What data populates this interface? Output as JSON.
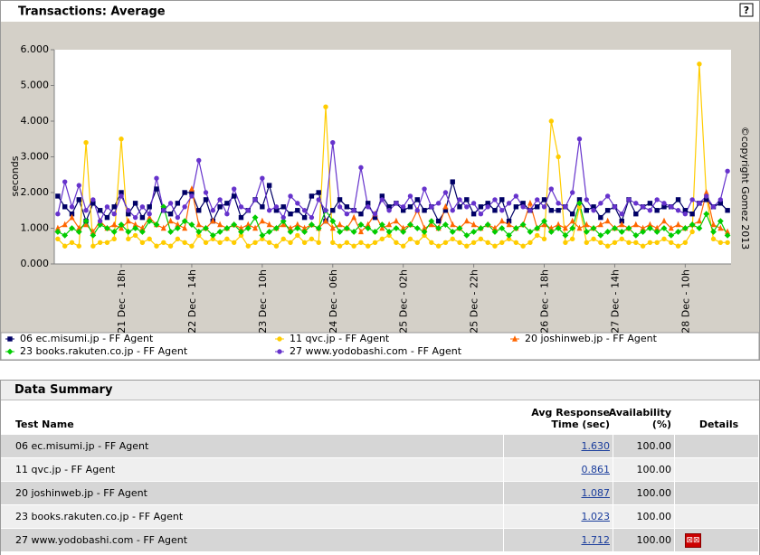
{
  "header": {
    "title": "Transactions: Average",
    "help": "?"
  },
  "chart_data": {
    "type": "line",
    "y_label": "seconds",
    "annotation": "©copyright Gomez 2013",
    "ylim": [
      0,
      6
    ],
    "yticks": [
      {
        "value": 0,
        "label": "0.000"
      },
      {
        "value": 1,
        "label": "1.000"
      },
      {
        "value": 2,
        "label": "2.000"
      },
      {
        "value": 3,
        "label": "3.000"
      },
      {
        "value": 4,
        "label": "4.000"
      },
      {
        "value": 5,
        "label": "5.000"
      },
      {
        "value": 6,
        "label": "6.000"
      }
    ],
    "grid": false,
    "categories": [
      null,
      null,
      null,
      null,
      null,
      null,
      null,
      null,
      null,
      "21 Dec - 18h",
      null,
      null,
      null,
      null,
      null,
      null,
      null,
      null,
      null,
      "22 Dec - 14h",
      null,
      null,
      null,
      null,
      null,
      null,
      null,
      null,
      null,
      "23 Dec - 10h",
      null,
      null,
      null,
      null,
      null,
      null,
      null,
      null,
      null,
      "24 Dec - 06h",
      null,
      null,
      null,
      null,
      null,
      null,
      null,
      null,
      null,
      "25 Dec - 02h",
      null,
      null,
      null,
      null,
      null,
      null,
      null,
      null,
      null,
      "25 Dec - 22h",
      null,
      null,
      null,
      null,
      null,
      null,
      null,
      null,
      null,
      "26 Dec - 18h",
      null,
      null,
      null,
      null,
      null,
      null,
      null,
      null,
      null,
      "27 Dec - 14h",
      null,
      null,
      null,
      null,
      null,
      null,
      null,
      null,
      null,
      "28 Dec - 10h",
      null,
      null,
      null,
      null,
      null,
      null
    ],
    "series": [
      {
        "name": "06 ec.misumi.jp - FF Agent",
        "color": "#000066",
        "marker": "square",
        "values": [
          1.9,
          1.6,
          1.4,
          1.8,
          1.2,
          1.7,
          1.5,
          1.3,
          1.6,
          2.0,
          1.4,
          1.7,
          1.3,
          1.6,
          2.1,
          1.5,
          1.4,
          1.7,
          2.0,
          2.0,
          1.5,
          1.8,
          1.2,
          1.6,
          1.7,
          1.9,
          1.3,
          1.5,
          1.8,
          1.6,
          2.2,
          1.5,
          1.6,
          1.4,
          1.5,
          1.3,
          1.9,
          2.0,
          1.2,
          1.5,
          1.8,
          1.6,
          1.5,
          1.4,
          1.7,
          1.3,
          1.9,
          1.6,
          1.7,
          1.5,
          1.6,
          1.8,
          1.5,
          1.6,
          1.2,
          1.5,
          2.3,
          1.6,
          1.8,
          1.4,
          1.6,
          1.7,
          1.5,
          1.8,
          1.2,
          1.6,
          1.7,
          1.5,
          1.6,
          1.8,
          1.5,
          1.5,
          1.6,
          1.4,
          1.8,
          1.5,
          1.6,
          1.3,
          1.5,
          1.6,
          1.2,
          1.8,
          1.4,
          1.6,
          1.7,
          1.5,
          1.6,
          1.6,
          1.8,
          1.5,
          1.4,
          1.7,
          1.8,
          1.6,
          1.7,
          1.5
        ]
      },
      {
        "name": "11 qvc.jp - FF Agent",
        "color": "#ffcc00",
        "marker": "circle",
        "values": [
          0.7,
          0.5,
          0.6,
          0.5,
          3.4,
          0.5,
          0.6,
          0.6,
          0.7,
          3.5,
          0.7,
          0.8,
          0.6,
          0.7,
          0.5,
          0.6,
          0.5,
          0.7,
          0.6,
          0.5,
          0.8,
          0.6,
          0.7,
          0.6,
          0.7,
          0.6,
          0.8,
          0.5,
          0.6,
          0.7,
          0.6,
          0.5,
          0.7,
          0.6,
          0.8,
          0.6,
          0.7,
          0.6,
          4.4,
          0.6,
          0.5,
          0.6,
          0.5,
          0.6,
          0.5,
          0.6,
          0.7,
          0.8,
          0.6,
          0.5,
          0.7,
          0.6,
          0.8,
          0.6,
          0.5,
          0.6,
          0.7,
          0.6,
          0.5,
          0.6,
          0.7,
          0.6,
          0.5,
          0.6,
          0.7,
          0.6,
          0.5,
          0.6,
          0.8,
          0.7,
          4.0,
          3.0,
          0.6,
          0.7,
          1.6,
          0.6,
          0.7,
          0.6,
          0.5,
          0.6,
          0.7,
          0.6,
          0.6,
          0.5,
          0.6,
          0.6,
          0.7,
          0.6,
          0.5,
          0.6,
          0.9,
          5.6,
          1.9,
          0.7,
          0.6,
          0.6
        ]
      },
      {
        "name": "20 joshinweb.jp - FF Agent",
        "color": "#ff6600",
        "marker": "triangle",
        "values": [
          1.0,
          1.1,
          1.3,
          1.0,
          1.1,
          0.9,
          1.2,
          1.0,
          1.1,
          1.0,
          1.2,
          1.1,
          1.0,
          1.3,
          1.1,
          1.0,
          1.2,
          1.1,
          1.0,
          2.1,
          1.1,
          1.0,
          1.2,
          1.1,
          1.0,
          1.1,
          1.0,
          1.1,
          1.0,
          1.2,
          1.1,
          1.0,
          1.1,
          1.0,
          1.1,
          1.0,
          1.1,
          1.0,
          1.2,
          1.0,
          1.1,
          1.0,
          1.3,
          0.9,
          1.1,
          1.4,
          1.0,
          1.1,
          1.2,
          1.0,
          1.1,
          1.5,
          1.0,
          1.1,
          1.0,
          1.6,
          1.1,
          1.0,
          1.2,
          1.1,
          1.0,
          1.1,
          1.0,
          1.2,
          1.1,
          1.0,
          1.1,
          1.7,
          1.0,
          1.1,
          1.0,
          1.1,
          1.0,
          1.2,
          1.0,
          1.1,
          1.0,
          1.1,
          1.2,
          1.0,
          1.1,
          1.0,
          1.1,
          1.0,
          1.1,
          1.0,
          1.2,
          1.0,
          1.1,
          1.0,
          1.1,
          1.2,
          2.0,
          1.1,
          1.0,
          0.9
        ]
      },
      {
        "name": "23 books.rakuten.co.jp - FF Agent",
        "color": "#00cc00",
        "marker": "diamond",
        "values": [
          0.9,
          0.8,
          1.0,
          0.9,
          1.2,
          0.8,
          1.1,
          1.0,
          0.9,
          1.1,
          0.9,
          1.0,
          0.9,
          1.2,
          1.1,
          1.6,
          0.9,
          1.0,
          1.2,
          1.1,
          0.9,
          1.0,
          0.8,
          0.9,
          1.0,
          1.1,
          0.9,
          1.0,
          1.3,
          0.8,
          0.9,
          1.0,
          1.2,
          0.9,
          1.0,
          0.9,
          1.1,
          1.0,
          1.5,
          1.2,
          0.9,
          1.0,
          0.9,
          1.1,
          1.0,
          0.9,
          1.1,
          0.9,
          1.0,
          0.9,
          1.1,
          1.0,
          0.9,
          1.2,
          1.0,
          1.1,
          0.9,
          1.0,
          0.8,
          0.9,
          1.0,
          1.1,
          0.9,
          1.0,
          0.8,
          1.0,
          1.1,
          0.9,
          1.0,
          1.2,
          0.9,
          1.0,
          0.8,
          1.0,
          1.7,
          0.9,
          1.0,
          0.8,
          0.9,
          1.0,
          0.9,
          1.0,
          0.8,
          0.9,
          1.0,
          0.9,
          1.0,
          0.8,
          0.9,
          1.0,
          1.1,
          1.0,
          1.4,
          0.9,
          1.2,
          0.8
        ]
      },
      {
        "name": "27 www.yodobashi.com - FF Agent",
        "color": "#6633cc",
        "marker": "circle",
        "values": [
          1.4,
          2.3,
          1.6,
          2.2,
          1.5,
          1.8,
          1.2,
          1.6,
          1.4,
          1.9,
          1.5,
          1.3,
          1.6,
          1.4,
          2.4,
          1.5,
          1.7,
          1.3,
          1.6,
          1.9,
          2.9,
          2.0,
          1.5,
          1.8,
          1.4,
          2.1,
          1.6,
          1.5,
          1.8,
          2.4,
          1.5,
          1.6,
          1.3,
          1.9,
          1.7,
          1.5,
          1.3,
          1.8,
          1.5,
          3.4,
          1.6,
          1.4,
          1.5,
          2.7,
          1.6,
          1.4,
          1.8,
          1.5,
          1.7,
          1.6,
          1.9,
          1.5,
          2.1,
          1.6,
          1.7,
          2.0,
          1.5,
          1.8,
          1.6,
          1.7,
          1.4,
          1.6,
          1.8,
          1.5,
          1.7,
          1.9,
          1.6,
          1.5,
          1.8,
          1.6,
          2.1,
          1.7,
          1.6,
          2.0,
          3.5,
          1.8,
          1.5,
          1.7,
          1.9,
          1.6,
          1.4,
          1.8,
          1.7,
          1.6,
          1.5,
          1.8,
          1.7,
          1.6,
          1.5,
          1.4,
          1.8,
          1.7,
          1.9,
          1.6,
          1.8,
          2.6
        ]
      }
    ]
  },
  "table": {
    "title": "Data Summary",
    "columns": [
      "Test Name",
      "Avg Response Time (sec)",
      "Availability (%)",
      "Details"
    ],
    "rows": [
      [
        "06 ec.misumi.jp - FF Agent",
        "1.630",
        "100.00"
      ],
      [
        "11 qvc.jp - FF Agent",
        "0.861",
        "100.00"
      ],
      [
        "20 joshinweb.jp - FF Agent",
        "1.087",
        "100.00"
      ],
      [
        "23 books.rakuten.co.jp - FF Agent",
        "1.023",
        "100.00"
      ],
      [
        "27 www.yodobashi.com - FF Agent",
        "1.712",
        "100.00"
      ]
    ]
  }
}
